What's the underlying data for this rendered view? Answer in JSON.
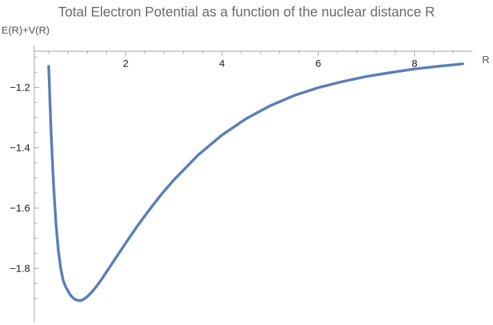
{
  "chart_data": {
    "type": "line",
    "title": "Total Electron Potential as a function of the nuclear distance R",
    "xlabel": "R",
    "ylabel": "E(R)+V(R)",
    "xlim": [
      0.05,
      9.1
    ],
    "ylim": [
      -1.94,
      -1.04
    ],
    "x_axis_at_y": -1.08,
    "y_axis_at_x": 0.1,
    "x_ticks": [
      2,
      4,
      6,
      8
    ],
    "y_ticks": [
      -1.2,
      -1.4,
      -1.6,
      -1.8
    ],
    "x_minor_step": 0.4,
    "y_minor_step": 0.05,
    "grid": false,
    "series": [
      {
        "color": "#5b7fb8",
        "x": [
          0.4,
          0.45,
          0.5,
          0.55,
          0.6,
          0.65,
          0.7,
          0.75,
          0.8,
          0.85,
          0.9,
          0.95,
          1.0,
          1.05,
          1.1,
          1.15,
          1.2,
          1.3,
          1.4,
          1.5,
          1.6,
          1.8,
          2.0,
          2.25,
          2.5,
          2.75,
          3.0,
          3.5,
          4.0,
          4.5,
          5.0,
          5.5,
          6.0,
          6.5,
          7.0,
          7.5,
          8.0,
          8.5,
          9.0
        ],
        "values": [
          -1.13,
          -1.35,
          -1.52,
          -1.65,
          -1.74,
          -1.8,
          -1.84,
          -1.86,
          -1.875,
          -1.888,
          -1.897,
          -1.903,
          -1.906,
          -1.907,
          -1.905,
          -1.9,
          -1.894,
          -1.878,
          -1.858,
          -1.836,
          -1.812,
          -1.764,
          -1.716,
          -1.658,
          -1.604,
          -1.553,
          -1.507,
          -1.425,
          -1.358,
          -1.304,
          -1.261,
          -1.227,
          -1.201,
          -1.181,
          -1.164,
          -1.151,
          -1.139,
          -1.13,
          -1.122
        ]
      }
    ]
  }
}
